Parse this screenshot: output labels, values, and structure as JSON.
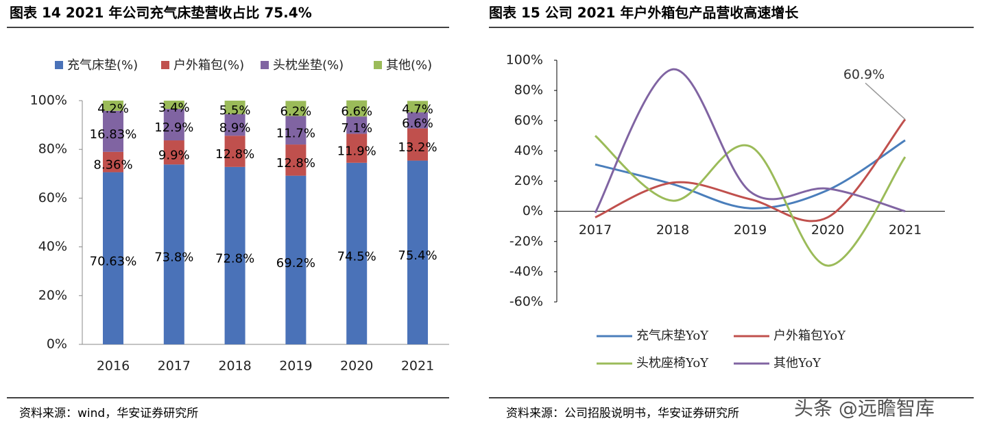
{
  "chart_data": [
    {
      "type": "bar",
      "stacked": true,
      "title": "图表 14 2021 年公司充气床垫营收占比 75.4%",
      "source": "资料来源：wind，华安证券研究所",
      "categories": [
        "2016",
        "2017",
        "2018",
        "2019",
        "2020",
        "2021"
      ],
      "series": [
        {
          "name": "充气床垫(%)",
          "color": "#4a72b8",
          "values": [
            70.63,
            73.8,
            72.8,
            69.2,
            74.5,
            75.4
          ],
          "value_labels": [
            "70.63%",
            "73.8%",
            "72.8%",
            "69.2%",
            "74.5%",
            "75.4%"
          ]
        },
        {
          "name": "户外箱包(%)",
          "color": "#c0504d",
          "values": [
            8.36,
            9.9,
            12.8,
            12.8,
            11.9,
            13.2
          ],
          "value_labels": [
            "8.36%",
            "9.9%",
            "12.8%",
            "12.8%",
            "11.9%",
            "13.2%"
          ]
        },
        {
          "name": "头枕坐垫(%)",
          "color": "#8064a2",
          "values": [
            16.83,
            12.9,
            8.9,
            11.7,
            7.1,
            6.6
          ],
          "value_labels": [
            "16.83%",
            "12.9%",
            "8.9%",
            "11.7%",
            "7.1%",
            "6.6%"
          ]
        },
        {
          "name": "其他(%)",
          "color": "#9bbb59",
          "values": [
            4.2,
            3.4,
            5.5,
            6.2,
            6.6,
            4.7
          ],
          "value_labels": [
            "4.2%",
            "3.4%",
            "5.5%",
            "6.2%",
            "6.6%",
            "4.7%"
          ]
        }
      ],
      "ylim": [
        0,
        100
      ],
      "yticks": [
        {
          "value": 0,
          "label": "0%"
        },
        {
          "value": 20,
          "label": "20%"
        },
        {
          "value": 40,
          "label": "40%"
        },
        {
          "value": 60,
          "label": "60%"
        },
        {
          "value": 80,
          "label": "80%"
        },
        {
          "value": 100,
          "label": "100%"
        }
      ],
      "grid": false,
      "legend": "top"
    },
    {
      "type": "line",
      "smooth": true,
      "title": "图表 15 公司 2021 年户外箱包产品营收高速增长",
      "source": "资料来源：公司招股说明书，华安证券研究所",
      "categories": [
        "2017",
        "2018",
        "2019",
        "2020",
        "2021"
      ],
      "series": [
        {
          "name": "充气床垫YoY",
          "color": "#4a7ebb",
          "values": [
            31,
            18,
            2,
            14,
            47
          ]
        },
        {
          "name": "户外箱包YoY",
          "color": "#c0504d",
          "values": [
            -4,
            19,
            8,
            -4,
            60.9
          ],
          "value_labels": [
            null,
            null,
            null,
            null,
            "60.9%"
          ]
        },
        {
          "name": "头枕座椅YoY",
          "color": "#9bbb59",
          "values": [
            50,
            7,
            43,
            -36,
            36
          ]
        },
        {
          "name": "其他YoY",
          "color": "#8064a2",
          "values": [
            -1,
            94,
            13,
            15,
            0
          ]
        }
      ],
      "ylim": [
        -60,
        100
      ],
      "yticks": [
        {
          "value": -60,
          "label": "-60%"
        },
        {
          "value": -40,
          "label": "-40%"
        },
        {
          "value": -20,
          "label": "-20%"
        },
        {
          "value": 0,
          "label": "0%"
        },
        {
          "value": 20,
          "label": "20%"
        },
        {
          "value": 40,
          "label": "40%"
        },
        {
          "value": 60,
          "label": "60%"
        },
        {
          "value": 80,
          "label": "80%"
        },
        {
          "value": 100,
          "label": "100%"
        }
      ],
      "grid": false,
      "legend": "bottom"
    }
  ],
  "watermark": "头条 @远瞻智库"
}
